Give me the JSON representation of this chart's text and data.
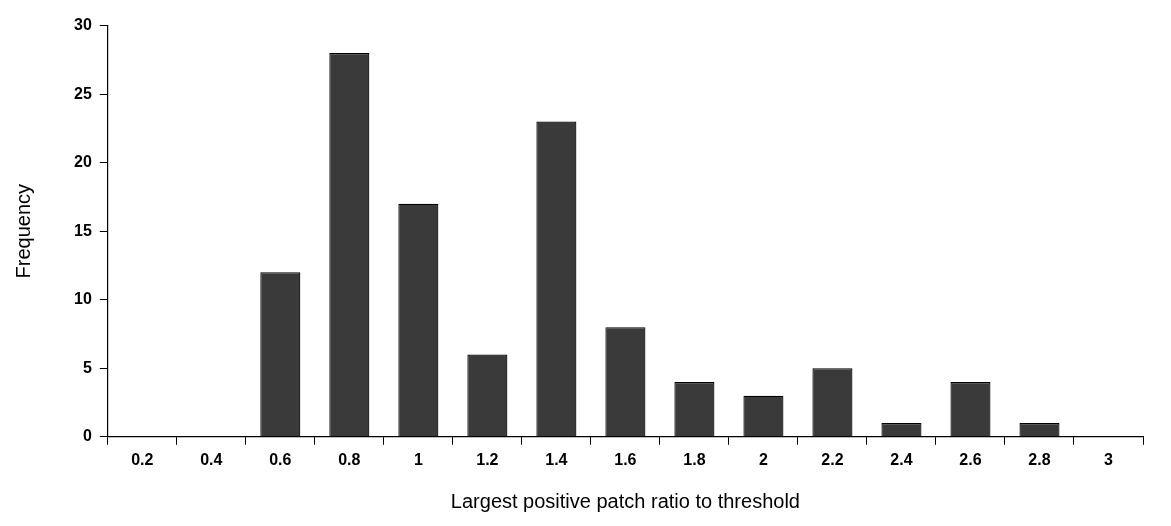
{
  "chart_data": {
    "type": "bar",
    "xlabel": "Largest positive patch ratio to threshold",
    "ylabel": "Frequency",
    "categories": [
      "0.2",
      "0.4",
      "0.6",
      "0.8",
      "1",
      "1.2",
      "1.4",
      "1.6",
      "1.8",
      "2",
      "2.2",
      "2.4",
      "2.6",
      "2.8",
      "3"
    ],
    "values": [
      0,
      0,
      12,
      28,
      17,
      6,
      23,
      8,
      4,
      3,
      5,
      1,
      4,
      1,
      0
    ],
    "color": "#3a3a3a",
    "ylim": [
      0,
      30
    ],
    "yticks": [
      0,
      5,
      10,
      15,
      20,
      25,
      30
    ],
    "grid": false,
    "legend": false
  }
}
